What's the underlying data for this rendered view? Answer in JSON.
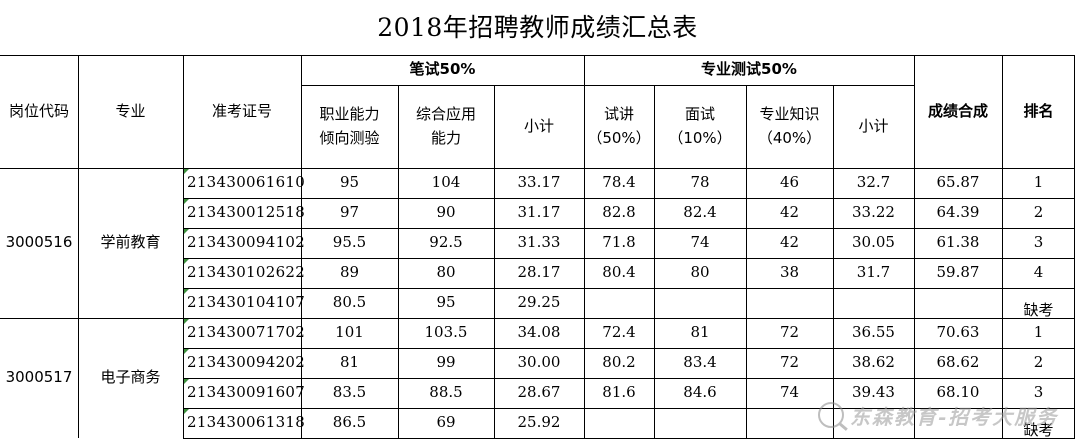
{
  "title": "2018年招聘教师成绩汇总表",
  "headers": {
    "post_code": "岗位代码",
    "major": "专业",
    "exam_id": "准考证号",
    "written_group": "笔试50%",
    "written_aptitude": "职业能力倾向测验",
    "written_comprehensive": "综合应用能力",
    "written_subtotal": "小计",
    "professional_group": "专业测试50%",
    "lecture": "试讲（50%）",
    "interview": "面试（10%）",
    "knowledge": "专业知识（40%）",
    "professional_subtotal": "小计",
    "total": "成绩合成",
    "rank": "排名"
  },
  "groups": [
    {
      "post_code": "3000516",
      "major": "学前教育",
      "rows": [
        {
          "id": "213430061610",
          "aptitude": "95",
          "comprehensive": "104",
          "written_subtotal": "33.17",
          "lecture": "78.4",
          "interview": "78",
          "knowledge": "46",
          "prof_subtotal": "32.7",
          "total": "65.87",
          "rank": "1"
        },
        {
          "id": "213430012518",
          "aptitude": "97",
          "comprehensive": "90",
          "written_subtotal": "31.17",
          "lecture": "82.8",
          "interview": "82.4",
          "knowledge": "42",
          "prof_subtotal": "33.22",
          "total": "64.39",
          "rank": "2"
        },
        {
          "id": "213430094102",
          "aptitude": "95.5",
          "comprehensive": "92.5",
          "written_subtotal": "31.33",
          "lecture": "71.8",
          "interview": "74",
          "knowledge": "42",
          "prof_subtotal": "30.05",
          "total": "61.38",
          "rank": "3"
        },
        {
          "id": "213430102622",
          "aptitude": "89",
          "comprehensive": "80",
          "written_subtotal": "28.17",
          "lecture": "80.4",
          "interview": "80",
          "knowledge": "38",
          "prof_subtotal": "31.7",
          "total": "59.87",
          "rank": "4"
        },
        {
          "id": "213430104107",
          "aptitude": "80.5",
          "comprehensive": "95",
          "written_subtotal": "29.25",
          "lecture": "",
          "interview": "",
          "knowledge": "",
          "prof_subtotal": "",
          "total": "",
          "rank": "缺考"
        }
      ]
    },
    {
      "post_code": "3000517",
      "major": "电子商务",
      "rows": [
        {
          "id": "213430071702",
          "aptitude": "101",
          "comprehensive": "103.5",
          "written_subtotal": "34.08",
          "lecture": "72.4",
          "interview": "81",
          "knowledge": "72",
          "prof_subtotal": "36.55",
          "total": "70.63",
          "rank": "1"
        },
        {
          "id": "213430094202",
          "aptitude": "81",
          "comprehensive": "99",
          "written_subtotal": "30.00",
          "lecture": "80.2",
          "interview": "83.4",
          "knowledge": "72",
          "prof_subtotal": "38.62",
          "total": "68.62",
          "rank": "2"
        },
        {
          "id": "213430091607",
          "aptitude": "83.5",
          "comprehensive": "88.5",
          "written_subtotal": "28.67",
          "lecture": "81.6",
          "interview": "84.6",
          "knowledge": "74",
          "prof_subtotal": "39.43",
          "total": "68.10",
          "rank": "3"
        },
        {
          "id": "213430061318",
          "aptitude": "86.5",
          "comprehensive": "69",
          "written_subtotal": "25.92",
          "lecture": "",
          "interview": "",
          "knowledge": "",
          "prof_subtotal": "",
          "total": "",
          "rank": "缺考"
        }
      ]
    }
  ],
  "watermark": {
    "text": "东森教育-招考大服务",
    "icon": "magnifier-logo-icon"
  }
}
